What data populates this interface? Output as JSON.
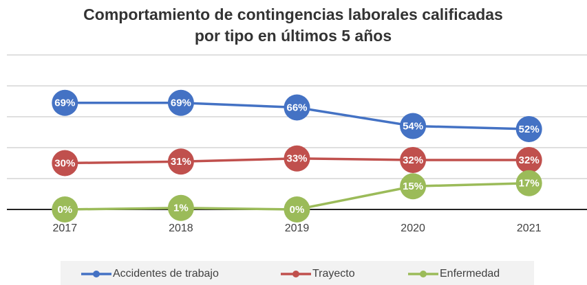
{
  "chart_data": {
    "type": "line",
    "title": "Comportamiento de contingencias laborales calificadas por tipo en últimos 5 años",
    "categories": [
      "2017",
      "2018",
      "2019",
      "2020",
      "2021"
    ],
    "series": [
      {
        "name": "Accidentes de trabajo",
        "color": "#4472c4",
        "values": [
          69,
          69,
          66,
          54,
          52
        ],
        "value_labels": [
          "69%",
          "69%",
          "66%",
          "54%",
          "52%"
        ]
      },
      {
        "name": "Trayecto",
        "color": "#c0504d",
        "values": [
          30,
          31,
          33,
          32,
          32
        ],
        "value_labels": [
          "30%",
          "31%",
          "33%",
          "32%",
          "32%"
        ]
      },
      {
        "name": "Enfermedad",
        "color": "#9bbb59",
        "values": [
          0,
          1,
          0,
          15,
          17
        ],
        "value_labels": [
          "0%",
          "1%",
          "0%",
          "15%",
          "17%"
        ]
      }
    ],
    "ylim": [
      0,
      100
    ],
    "yticks": [
      0,
      20,
      40,
      60,
      80,
      100
    ],
    "grid": true,
    "legend": "bottom"
  }
}
